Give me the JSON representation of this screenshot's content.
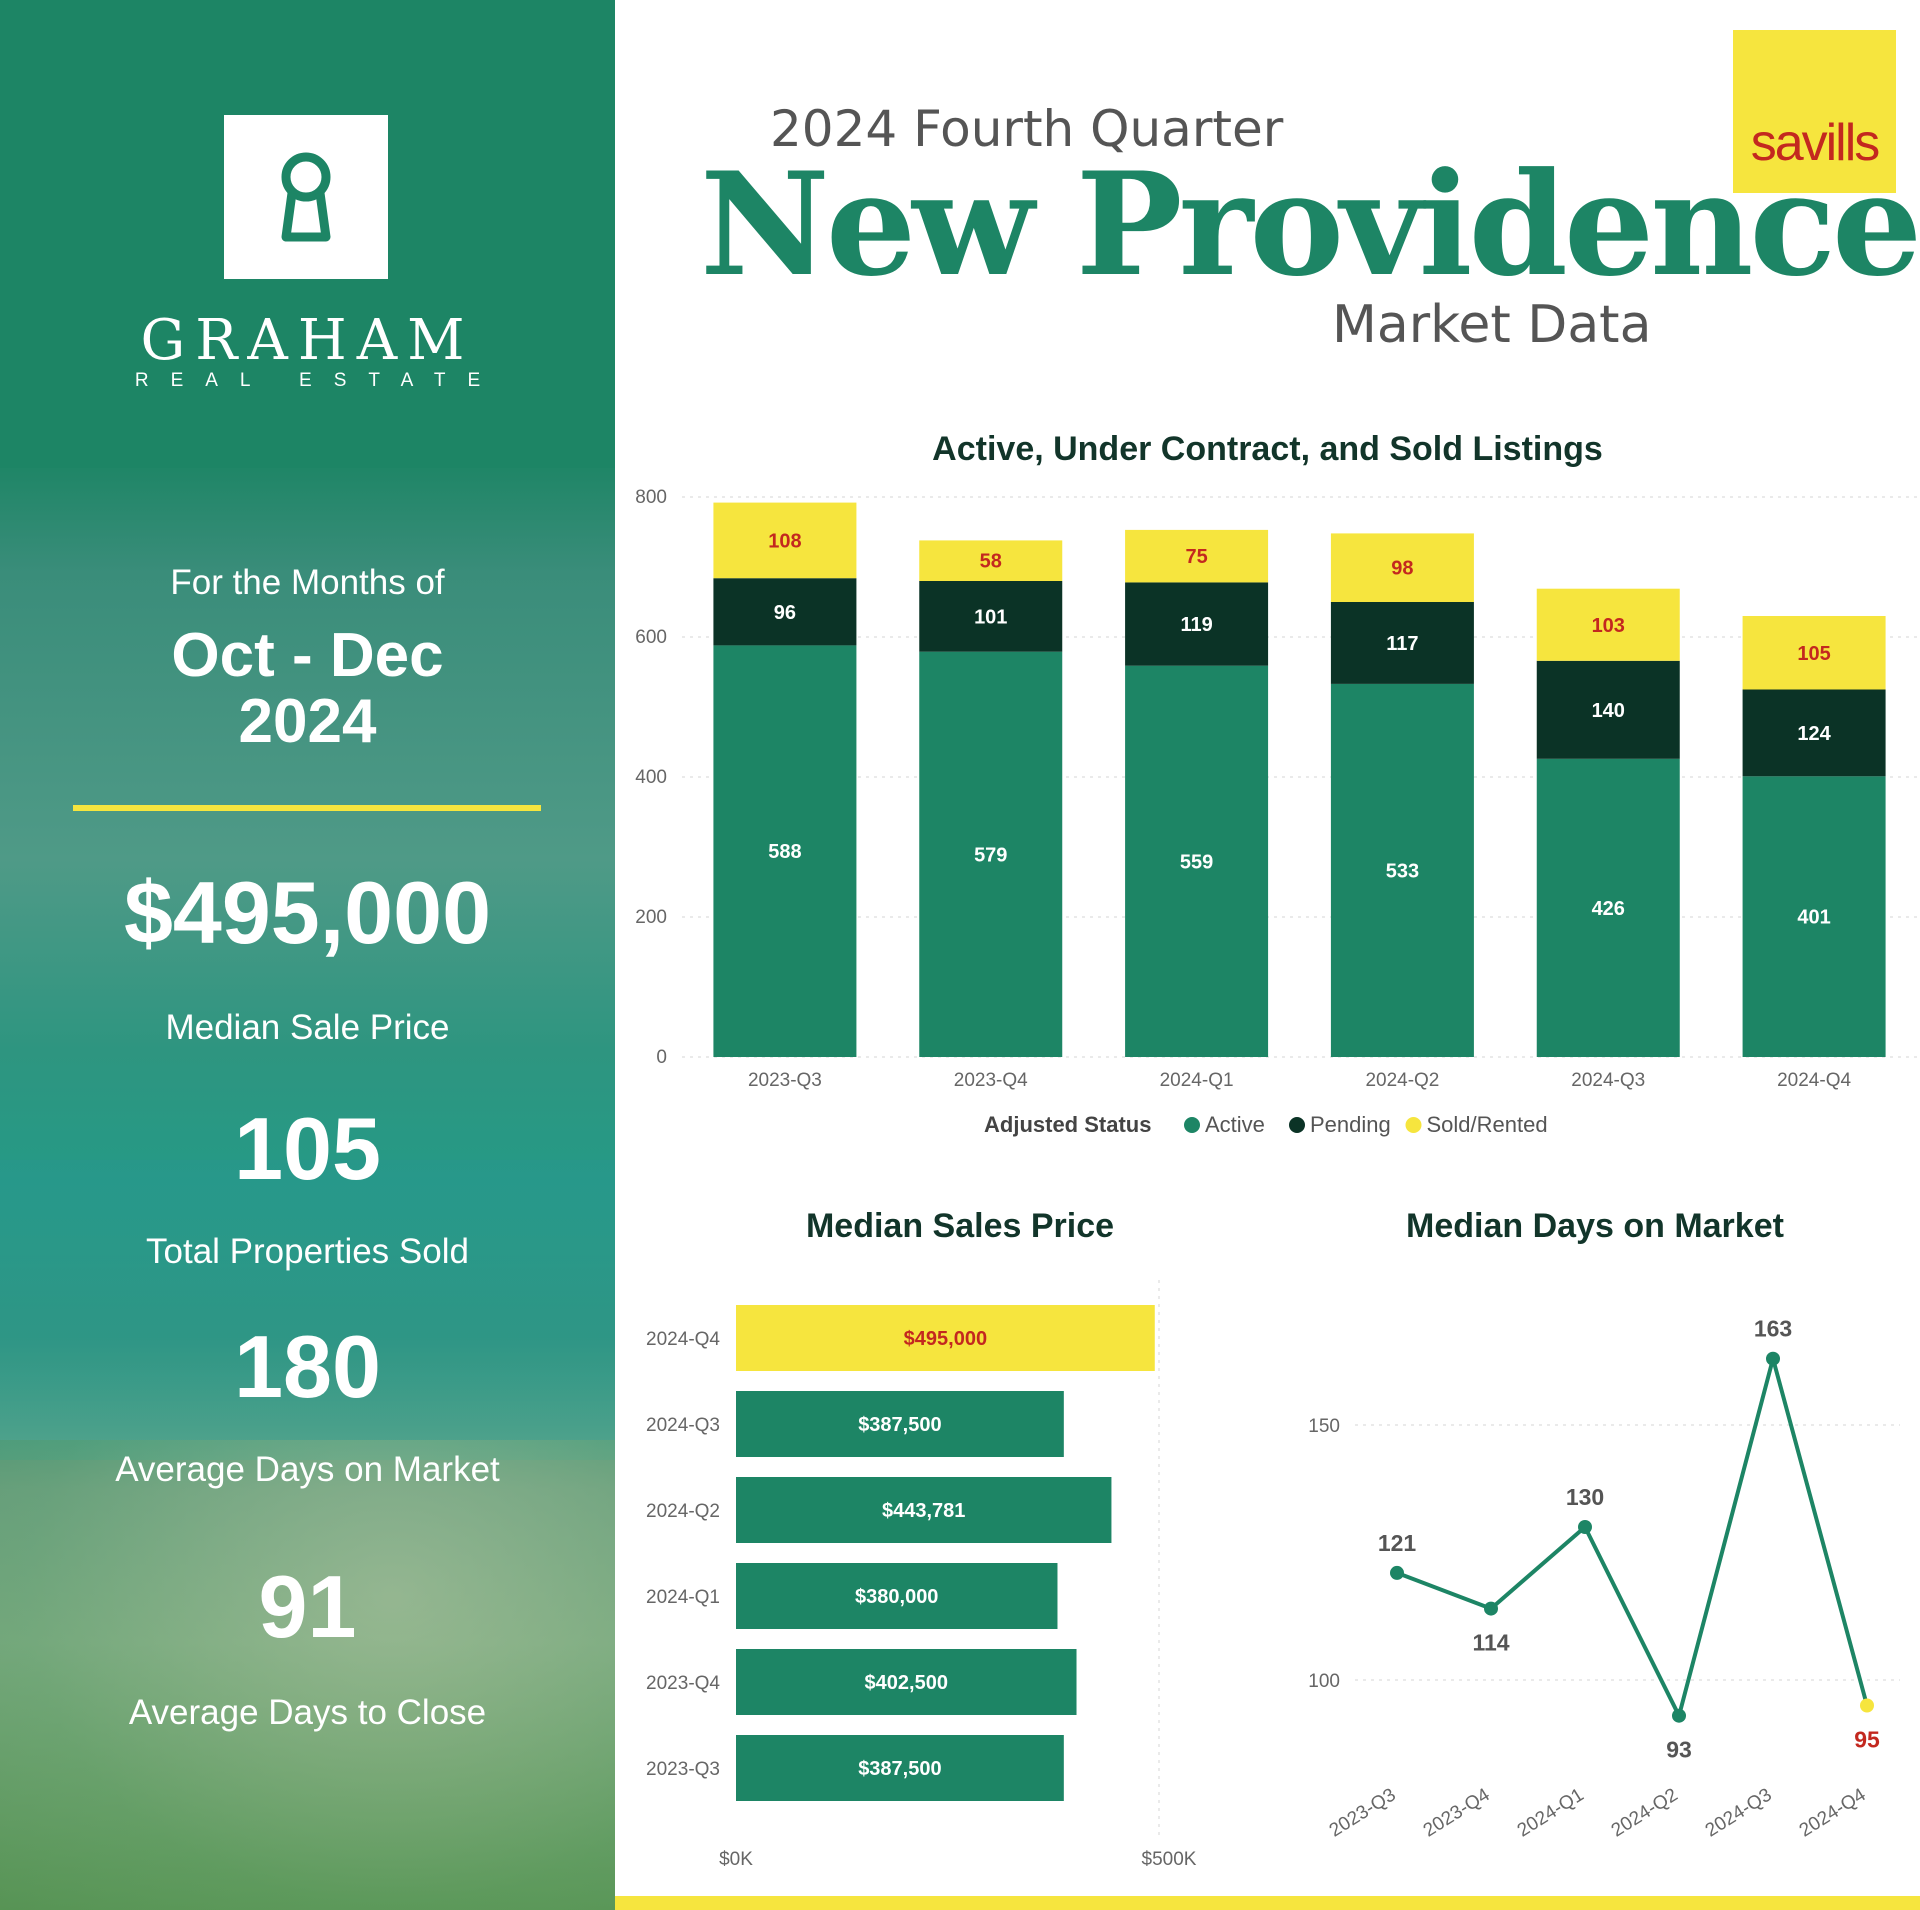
{
  "brand": {
    "name": "GRAHAM",
    "tagline": "REAL ESTATE"
  },
  "partner_logo": "savills",
  "header": {
    "quarter": "2024 Fourth Quarter",
    "title": "New Providence",
    "subtitle": "Market Data"
  },
  "summary": {
    "period_label": "For the Months of",
    "period_range": "Oct - Dec",
    "period_year": "2024",
    "median_price": "$495,000",
    "median_price_label": "Median Sale Price",
    "properties_sold": "105",
    "properties_sold_label": "Total Properties Sold",
    "avg_days_market": "180",
    "avg_days_market_label": "Average Days on Market",
    "avg_days_close": "91",
    "avg_days_close_label": "Average Days to Close"
  },
  "colors": {
    "green": "#1d8565",
    "dark": "#0b3326",
    "yellow": "#f6e53e",
    "red": "#c3281f"
  },
  "chart_data": [
    {
      "type": "bar",
      "stacked": true,
      "title": "Active, Under Contract, and Sold Listings",
      "categories": [
        "2023-Q3",
        "2023-Q4",
        "2024-Q1",
        "2024-Q2",
        "2024-Q3",
        "2024-Q4"
      ],
      "series": [
        {
          "name": "Active",
          "values": [
            588,
            579,
            559,
            533,
            426,
            401
          ]
        },
        {
          "name": "Pending",
          "values": [
            96,
            101,
            119,
            117,
            140,
            124
          ]
        },
        {
          "name": "Sold/Rented",
          "values": [
            108,
            58,
            75,
            98,
            103,
            105
          ]
        }
      ],
      "ylim": [
        0,
        800
      ],
      "yticks": [
        "0",
        "200",
        "400",
        "600",
        "800"
      ],
      "legend_title": "Adjusted Status",
      "legend_position": "bottom",
      "grid": true
    },
    {
      "type": "bar",
      "orientation": "horizontal",
      "title": "Median Sales Price",
      "categories": [
        "2024-Q4",
        "2024-Q3",
        "2024-Q2",
        "2024-Q1",
        "2023-Q4",
        "2023-Q3"
      ],
      "values": [
        495000,
        387500,
        443781,
        380000,
        402500,
        387500
      ],
      "value_labels": [
        "$495,000",
        "$387,500",
        "$443,781",
        "$380,000",
        "$402,500",
        "$387,500"
      ],
      "xlim": [
        0,
        500000
      ],
      "xticks": [
        "$0K",
        "$500K"
      ],
      "highlight_category": "2024-Q4"
    },
    {
      "type": "line",
      "title": "Median Days on Market",
      "x": [
        "2023-Q3",
        "2023-Q4",
        "2024-Q1",
        "2024-Q2",
        "2024-Q3",
        "2024-Q4"
      ],
      "values": [
        121,
        114,
        130,
        93,
        163,
        95
      ],
      "yticks": [
        100,
        150
      ],
      "ylim": [
        80,
        170
      ],
      "highlight_category": "2024-Q4"
    }
  ]
}
